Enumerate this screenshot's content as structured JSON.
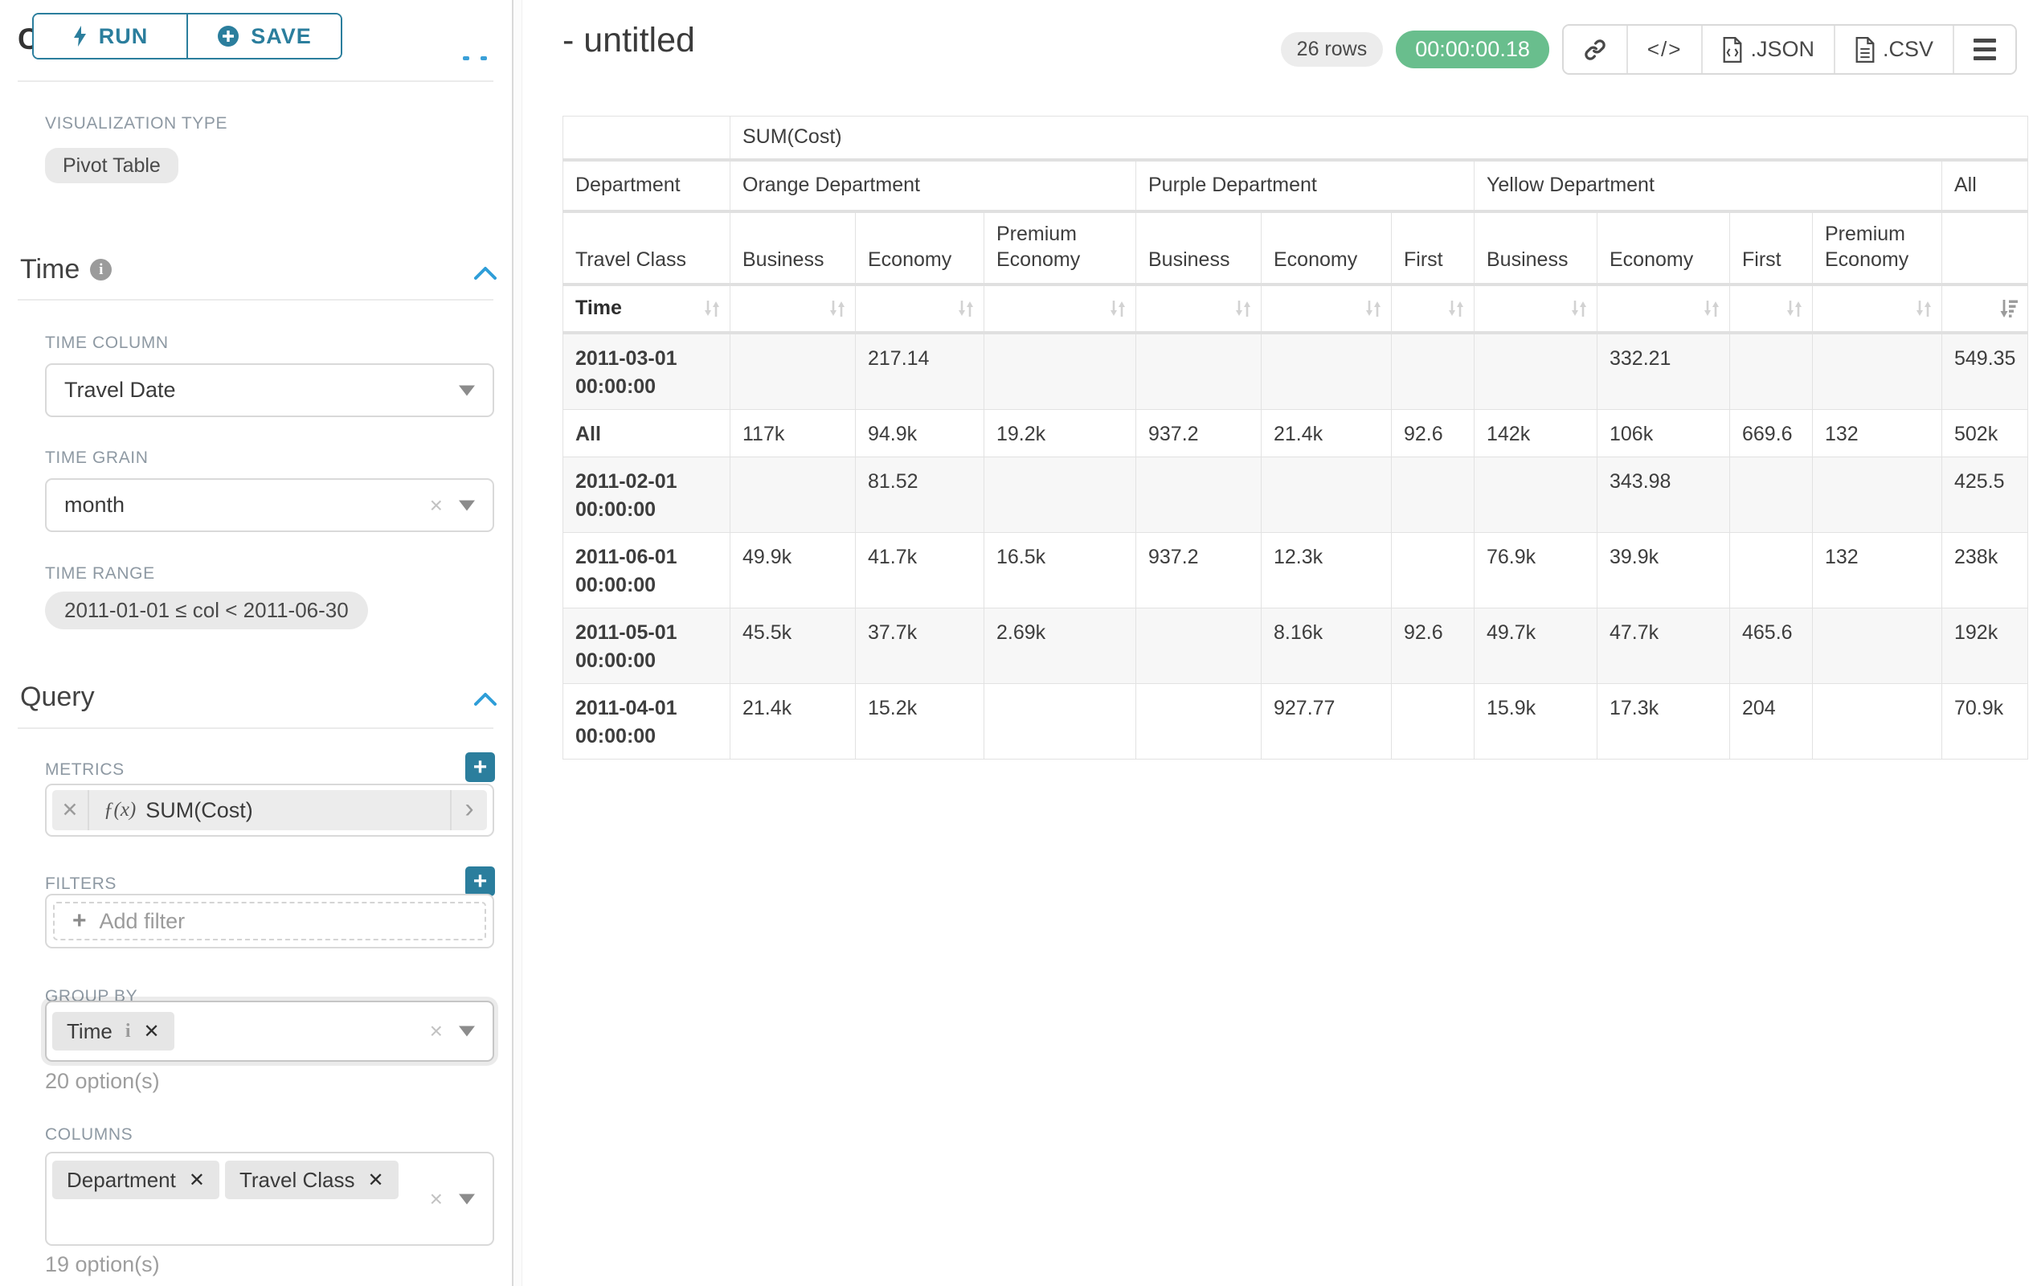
{
  "sidebar": {
    "chart_type_heading": "Chart Type",
    "run_label": "RUN",
    "save_label": "SAVE",
    "viz_type_label": "VISUALIZATION TYPE",
    "viz_type_value": "Pivot Table",
    "time_section": "Time",
    "time_column_label": "TIME COLUMN",
    "time_column_value": "Travel Date",
    "time_grain_label": "TIME GRAIN",
    "time_grain_value": "month",
    "time_range_label": "TIME RANGE",
    "time_range_value": "2011-01-01 ≤ col < 2011-06-30",
    "query_section": "Query",
    "metrics_label": "METRICS",
    "metric_fx": "ƒ(x)",
    "metric_value": "SUM(Cost)",
    "filters_label": "FILTERS",
    "add_filter_label": "Add filter",
    "group_by_label": "GROUP BY",
    "group_by_chip": "Time",
    "group_by_options": "20 option(s)",
    "columns_label": "COLUMNS",
    "columns_chip_1": "Department",
    "columns_chip_2": "Travel Class",
    "columns_options": "19 option(s)"
  },
  "header": {
    "title": "- untitled",
    "rows_badge": "26 rows",
    "timer": "00:00:00.18",
    "json_label": ".JSON",
    "csv_label": ".CSV"
  },
  "icons": {
    "run": "lightning-icon",
    "save": "plus-circle-icon",
    "sections": "chevron-up-icon",
    "share": "link-icon",
    "embed": "code-icon",
    "export_json": "file-json-icon",
    "export_csv": "file-csv-icon",
    "more": "menu-icon",
    "sort_inactive": "sort-icon",
    "sort_active": "sort-desc-icon"
  },
  "colors": {
    "accent_teal": "#2b7e9d",
    "timer_green": "#69be8d",
    "chevron_blue": "#2f9ed8",
    "chip_gray": "#e9e9e9",
    "label_gray": "#8e99a3",
    "border_gray": "#d9d9d9"
  },
  "chart_data": {
    "type": "table",
    "title": "SUM(Cost)",
    "row_header_label": "Department",
    "row_subheader_label": "Travel Class",
    "time_label": "Time",
    "column_groups": [
      {
        "label": "Orange Department",
        "span": 3
      },
      {
        "label": "Purple Department",
        "span": 3
      },
      {
        "label": "Yellow Department",
        "span": 4
      },
      {
        "label": "All",
        "span": 1
      }
    ],
    "columns": [
      "Business",
      "Economy",
      "Premium Economy",
      "Business",
      "Economy",
      "First",
      "Business",
      "Economy",
      "First",
      "Premium Economy",
      ""
    ],
    "rows": [
      {
        "label": "2011-03-01 00:00:00",
        "values": [
          "",
          "217.14",
          "",
          "",
          "",
          "",
          "",
          "332.21",
          "",
          "",
          "549.35"
        ]
      },
      {
        "label": "All",
        "values": [
          "117k",
          "94.9k",
          "19.2k",
          "937.2",
          "21.4k",
          "92.6",
          "142k",
          "106k",
          "669.6",
          "132",
          "502k"
        ]
      },
      {
        "label": "2011-02-01 00:00:00",
        "values": [
          "",
          "81.52",
          "",
          "",
          "",
          "",
          "",
          "343.98",
          "",
          "",
          "425.5"
        ]
      },
      {
        "label": "2011-06-01 00:00:00",
        "values": [
          "49.9k",
          "41.7k",
          "16.5k",
          "937.2",
          "12.3k",
          "",
          "76.9k",
          "39.9k",
          "",
          "132",
          "238k"
        ]
      },
      {
        "label": "2011-05-01 00:00:00",
        "values": [
          "45.5k",
          "37.7k",
          "2.69k",
          "",
          "8.16k",
          "92.6",
          "49.7k",
          "47.7k",
          "465.6",
          "",
          "192k"
        ]
      },
      {
        "label": "2011-04-01 00:00:00",
        "values": [
          "21.4k",
          "15.2k",
          "",
          "",
          "927.77",
          "",
          "15.9k",
          "17.3k",
          "204",
          "",
          "70.9k"
        ]
      }
    ]
  }
}
